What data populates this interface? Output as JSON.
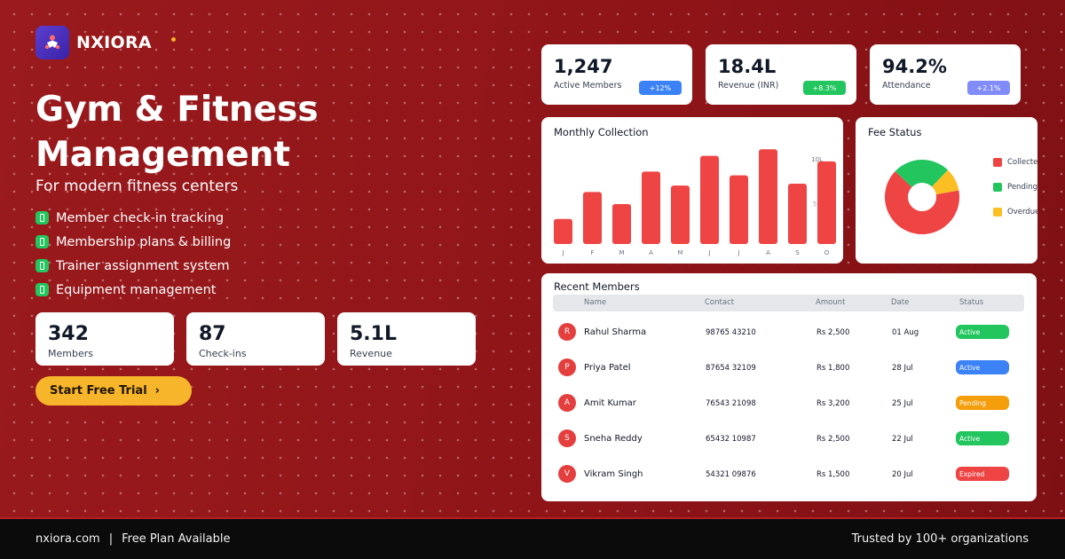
{
  "brand": {
    "name": "NXIORA"
  },
  "hero": {
    "title_line1": "Gym & Fitness",
    "title_line2": "Management",
    "subtitle": "For modern fitness centers"
  },
  "features": [
    "Member check-in tracking",
    "Membership plans & billing",
    "Trainer assignment system",
    "Equipment management"
  ],
  "stats": [
    {
      "value": "342",
      "label": "Members"
    },
    {
      "value": "87",
      "label": "Check-ins"
    },
    {
      "value": "5.1L",
      "label": "Revenue"
    }
  ],
  "cta": {
    "label": "Start Free Trial",
    "arrow": "›"
  },
  "kpis": [
    {
      "value": "1,247",
      "label": "Active Members",
      "badge": "+12%",
      "badge_color": "#3b82f6"
    },
    {
      "value": "18.4L",
      "label": "Revenue (INR)",
      "badge": "+8.3%",
      "badge_color": "#22c55e"
    },
    {
      "value": "94.2%",
      "label": "Attendance",
      "badge": "+2.1%",
      "badge_color": "#818cf8"
    }
  ],
  "monthly": {
    "title": "Monthly Collection",
    "ytick_top": "10L",
    "ytick_mid": "5L"
  },
  "fee_status": {
    "title": "Fee Status"
  },
  "chart_data": [
    {
      "type": "bar",
      "title": "Monthly Collection",
      "categories": [
        "J",
        "F",
        "M",
        "A",
        "M",
        "J",
        "J",
        "A",
        "S",
        "O"
      ],
      "values": [
        2.7,
        5.6,
        4.3,
        7.8,
        6.3,
        9.5,
        7.4,
        10.2,
        6.5,
        8.9
      ],
      "ylim": [
        0,
        12
      ],
      "color": "#ef4444",
      "grid": false
    },
    {
      "type": "pie",
      "title": "Fee Status",
      "labels": [
        "Collected",
        "Pending",
        "Overdue"
      ],
      "values": [
        65,
        25,
        10
      ],
      "colors": [
        "#ef4444",
        "#22c55e",
        "#fbbf24"
      ],
      "legend": "right"
    }
  ],
  "recent": {
    "title": "Recent Members",
    "columns": [
      "Name",
      "Contact",
      "Amount",
      "Date",
      "Status"
    ],
    "rows": [
      {
        "initial": "R",
        "name": "Rahul Sharma",
        "contact": "98765 43210",
        "amount": "Rs 2,500",
        "date": "01 Aug",
        "status": "Active",
        "status_color": "#22c55e"
      },
      {
        "initial": "P",
        "name": "Priya Patel",
        "contact": "87654 32109",
        "amount": "Rs 1,800",
        "date": "28 Jul",
        "status": "Active",
        "status_color": "#3b82f6"
      },
      {
        "initial": "A",
        "name": "Amit Kumar",
        "contact": "76543 21098",
        "amount": "Rs 3,200",
        "date": "25 Jul",
        "status": "Pending",
        "status_color": "#f59e0b"
      },
      {
        "initial": "S",
        "name": "Sneha Reddy",
        "contact": "65432 10987",
        "amount": "Rs 2,500",
        "date": "22 Jul",
        "status": "Active",
        "status_color": "#22c55e"
      },
      {
        "initial": "V",
        "name": "Vikram Singh",
        "contact": "54321 09876",
        "amount": "Rs 1,500",
        "date": "20 Jul",
        "status": "Expired",
        "status_color": "#ef4444"
      }
    ]
  },
  "footer": {
    "site": "nxiora.com",
    "separator": "|",
    "plan": "Free Plan Available",
    "trust": "Trusted by 100+ organizations"
  }
}
